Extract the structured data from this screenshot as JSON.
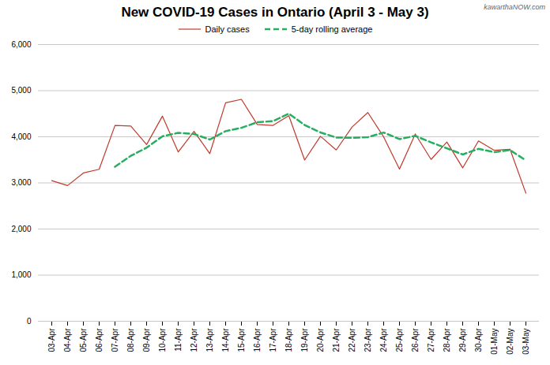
{
  "chart_data": {
    "type": "line",
    "title": "New COVID-19 Cases in Ontario (April 3 - May 3)",
    "annotations": [
      "kawarthaNOW.com"
    ],
    "categories": [
      "03-Apr",
      "04-Apr",
      "05-Apr",
      "06-Apr",
      "07-Apr",
      "08-Apr",
      "09-Apr",
      "10-Apr",
      "11-Apr",
      "12-Apr",
      "13-Apr",
      "14-Apr",
      "15-Apr",
      "16-Apr",
      "17-Apr",
      "18-Apr",
      "19-Apr",
      "20-Apr",
      "21-Apr",
      "22-Apr",
      "23-Apr",
      "24-Apr",
      "25-Apr",
      "26-Apr",
      "27-Apr",
      "28-Apr",
      "29-Apr",
      "30-Apr",
      "01-May",
      "02-May",
      "03-May"
    ],
    "series": [
      {
        "name": "Daily cases",
        "color": "#c0392b",
        "line_style": "solid",
        "values": [
          3049,
          2942,
          3215,
          3295,
          4246,
          4232,
          3831,
          4447,
          3670,
          4118,
          3636,
          4736,
          4812,
          4266,
          4246,
          4456,
          3495,
          4010,
          3714,
          4212,
          4526,
          3997,
          3299,
          4060,
          3509,
          3887,
          3326,
          3910,
          3706,
          3727,
          2775
        ]
      },
      {
        "name": "5-day rolling average",
        "color": "#27ae60",
        "line_style": "dashed",
        "values": [
          null,
          null,
          null,
          null,
          3349.4,
          3586,
          3763.8,
          4010.2,
          4085.2,
          4059.6,
          3940.4,
          4121.4,
          4194.4,
          4313.6,
          4339.2,
          4503.2,
          4255,
          4094.6,
          3984.2,
          3977.4,
          3991.4,
          4091.8,
          3949.6,
          4018.8,
          3878.2,
          3750.4,
          3616.2,
          3738.4,
          3667.6,
          3711.2,
          3488.8
        ]
      }
    ],
    "ylim": [
      0,
      6000
    ],
    "yticks": [
      0,
      {
        "value": 1000,
        "label": "1,000"
      },
      {
        "value": 2000,
        "label": "2,000"
      },
      {
        "value": 3000,
        "label": "3,000"
      },
      {
        "value": 4000,
        "label": "4,000"
      },
      {
        "value": 5000,
        "label": "5,000"
      },
      {
        "value": 6000,
        "label": "6,000"
      }
    ],
    "grid": "y",
    "legend": "top"
  }
}
